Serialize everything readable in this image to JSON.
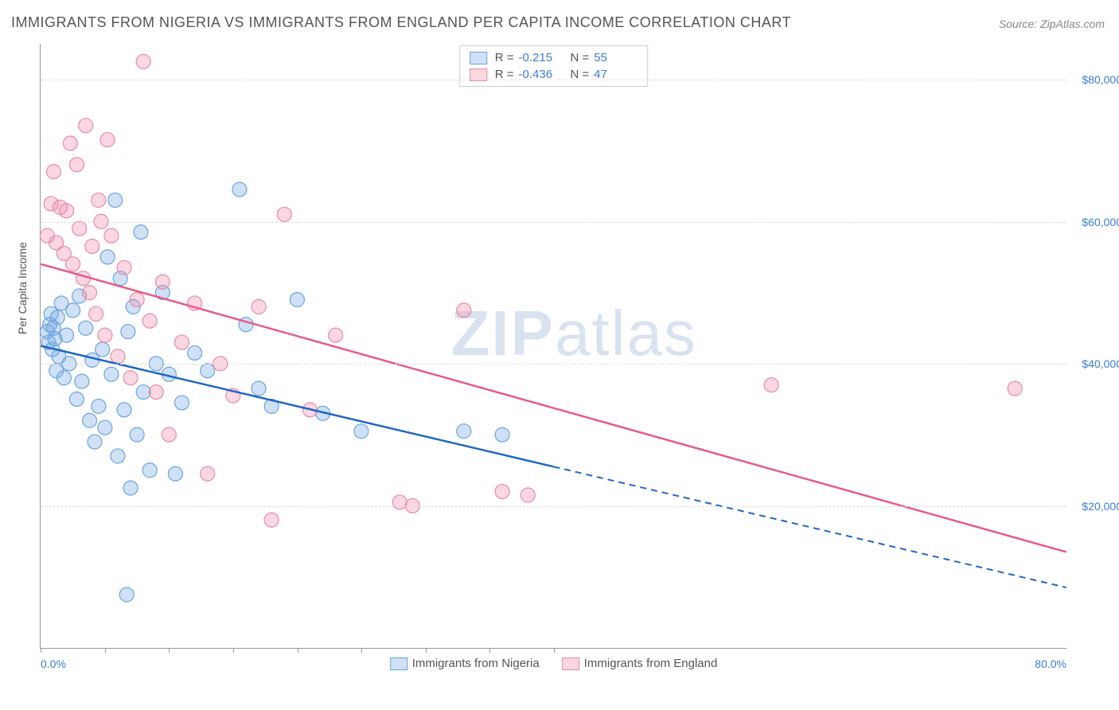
{
  "title": "IMMIGRANTS FROM NIGERIA VS IMMIGRANTS FROM ENGLAND PER CAPITA INCOME CORRELATION CHART",
  "source_label": "Source: ZipAtlas.com",
  "y_axis_title": "Per Capita Income",
  "watermark": {
    "bold": "ZIP",
    "rest": "atlas"
  },
  "chart": {
    "type": "scatter",
    "background_color": "#ffffff",
    "grid_color": "#dddddd",
    "axis_color": "#999999",
    "xlim": [
      0,
      80
    ],
    "ylim": [
      0,
      85000
    ],
    "x_tick_labels": {
      "min": "0.0%",
      "max": "80.0%"
    },
    "y_ticks": [
      20000,
      40000,
      60000,
      80000
    ],
    "y_tick_labels": [
      "$20,000",
      "$40,000",
      "$60,000",
      "$80,000"
    ],
    "x_bottom_tick_positions": [
      0,
      5,
      10,
      15,
      20,
      25,
      30,
      35,
      40
    ],
    "marker_radius": 9,
    "marker_stroke_width": 1.2,
    "series": [
      {
        "name": "Immigrants from Nigeria",
        "label": "Immigrants from Nigeria",
        "fill_color": "rgba(120, 170, 230, 0.35)",
        "stroke_color": "#6aa3e0",
        "line_color": "#1f66c7",
        "R": "-0.215",
        "N": "55",
        "trend": {
          "x1": 0,
          "y1": 42500,
          "x2": 40,
          "y2": 25500,
          "x2_ext": 80,
          "y2_ext": 8500
        },
        "points": [
          [
            0.5,
            44500
          ],
          [
            0.6,
            43000
          ],
          [
            0.7,
            45500
          ],
          [
            0.8,
            47000
          ],
          [
            0.9,
            42000
          ],
          [
            1.0,
            45000
          ],
          [
            1.1,
            43500
          ],
          [
            1.2,
            39000
          ],
          [
            1.3,
            46500
          ],
          [
            1.4,
            41000
          ],
          [
            1.6,
            48500
          ],
          [
            1.8,
            38000
          ],
          [
            2.0,
            44000
          ],
          [
            2.2,
            40000
          ],
          [
            2.5,
            47500
          ],
          [
            2.8,
            35000
          ],
          [
            3.0,
            49500
          ],
          [
            3.2,
            37500
          ],
          [
            3.5,
            45000
          ],
          [
            3.8,
            32000
          ],
          [
            4.0,
            40500
          ],
          [
            4.2,
            29000
          ],
          [
            4.5,
            34000
          ],
          [
            4.8,
            42000
          ],
          [
            5.0,
            31000
          ],
          [
            5.2,
            55000
          ],
          [
            5.5,
            38500
          ],
          [
            5.8,
            63000
          ],
          [
            6.0,
            27000
          ],
          [
            6.2,
            52000
          ],
          [
            6.5,
            33500
          ],
          [
            6.8,
            44500
          ],
          [
            7.0,
            22500
          ],
          [
            7.2,
            48000
          ],
          [
            7.5,
            30000
          ],
          [
            7.8,
            58500
          ],
          [
            8.0,
            36000
          ],
          [
            8.5,
            25000
          ],
          [
            9.0,
            40000
          ],
          [
            9.5,
            50000
          ],
          [
            10.0,
            38500
          ],
          [
            10.5,
            24500
          ],
          [
            11.0,
            34500
          ],
          [
            12.0,
            41500
          ],
          [
            13.0,
            39000
          ],
          [
            15.5,
            64500
          ],
          [
            16.0,
            45500
          ],
          [
            17.0,
            36500
          ],
          [
            18.0,
            34000
          ],
          [
            20.0,
            49000
          ],
          [
            22.0,
            33000
          ],
          [
            25.0,
            30500
          ],
          [
            33.0,
            30500
          ],
          [
            36.0,
            30000
          ],
          [
            6.7,
            7500
          ]
        ]
      },
      {
        "name": "Immigrants from England",
        "label": "Immigrants from England",
        "fill_color": "rgba(240, 140, 170, 0.35)",
        "stroke_color": "#e88aa8",
        "line_color": "#e85a8a",
        "R": "-0.436",
        "N": "47",
        "trend": {
          "x1": 0,
          "y1": 54000,
          "x2": 80,
          "y2": 13500
        },
        "points": [
          [
            0.5,
            58000
          ],
          [
            0.8,
            62500
          ],
          [
            1.0,
            67000
          ],
          [
            1.2,
            57000
          ],
          [
            1.5,
            62000
          ],
          [
            1.8,
            55500
          ],
          [
            2.0,
            61500
          ],
          [
            2.3,
            71000
          ],
          [
            2.5,
            54000
          ],
          [
            2.8,
            68000
          ],
          [
            3.0,
            59000
          ],
          [
            3.3,
            52000
          ],
          [
            3.5,
            73500
          ],
          [
            3.8,
            50000
          ],
          [
            4.0,
            56500
          ],
          [
            4.3,
            47000
          ],
          [
            4.5,
            63000
          ],
          [
            5.0,
            44000
          ],
          [
            5.5,
            58000
          ],
          [
            6.0,
            41000
          ],
          [
            6.5,
            53500
          ],
          [
            7.0,
            38000
          ],
          [
            7.5,
            49000
          ],
          [
            8.0,
            82500
          ],
          [
            8.5,
            46000
          ],
          [
            9.0,
            36000
          ],
          [
            9.5,
            51500
          ],
          [
            10.0,
            30000
          ],
          [
            11.0,
            43000
          ],
          [
            12.0,
            48500
          ],
          [
            13.0,
            24500
          ],
          [
            14.0,
            40000
          ],
          [
            15.0,
            35500
          ],
          [
            17.0,
            48000
          ],
          [
            19.0,
            61000
          ],
          [
            21.0,
            33500
          ],
          [
            23.0,
            44000
          ],
          [
            18.0,
            18000
          ],
          [
            28.0,
            20500
          ],
          [
            29.0,
            20000
          ],
          [
            33.0,
            47500
          ],
          [
            36.0,
            22000
          ],
          [
            38.0,
            21500
          ],
          [
            57.0,
            37000
          ],
          [
            76.0,
            36500
          ],
          [
            5.2,
            71500
          ],
          [
            4.7,
            60000
          ]
        ]
      }
    ]
  },
  "legend_top": {
    "r_label": "R =",
    "n_label": "N ="
  }
}
